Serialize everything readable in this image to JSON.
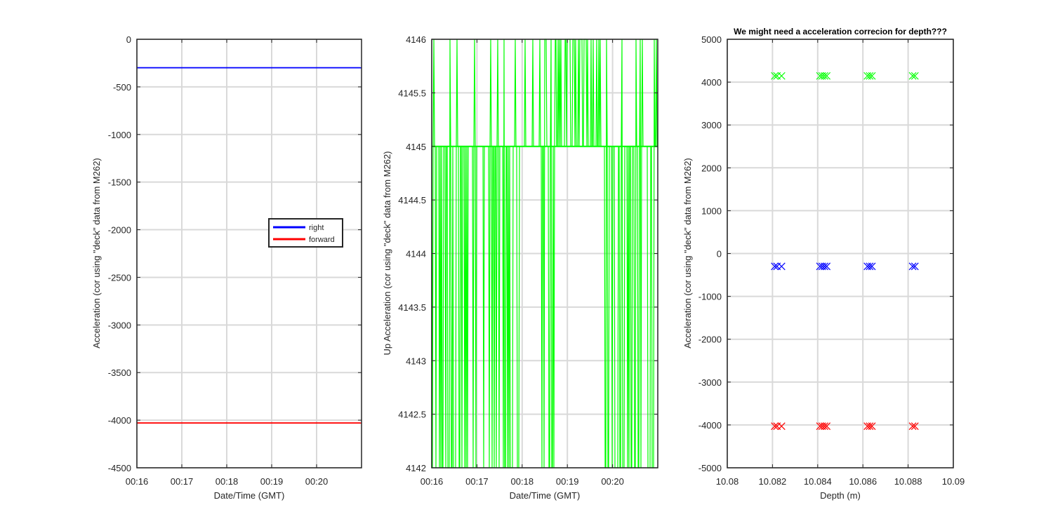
{
  "figure": {
    "background": "#ffffff"
  },
  "chart_data": [
    {
      "type": "line",
      "title": "",
      "xlabel": "Date/Time (GMT)",
      "ylabel": "Acceleration (cor using \"deck\" data from M262)",
      "x_ticks": [
        "00:16",
        "00:17",
        "00:18",
        "00:19",
        "00:20"
      ],
      "xlim": [
        0,
        5
      ],
      "ylim": [
        -4500,
        0
      ],
      "y_ticks": [
        0,
        -500,
        -1000,
        -1500,
        -2000,
        -2500,
        -3000,
        -3500,
        -4000,
        -4500
      ],
      "grid": true,
      "legend": {
        "placement": "center-right",
        "entries": [
          "right",
          "forward"
        ]
      },
      "series": [
        {
          "name": "right",
          "color": "#0000ff",
          "x": [
            0,
            5
          ],
          "values": [
            -300,
            -300
          ]
        },
        {
          "name": "forward",
          "color": "#ff0000",
          "x": [
            0,
            5
          ],
          "values": [
            -4030,
            -4030
          ]
        }
      ]
    },
    {
      "type": "line",
      "title": "",
      "xlabel": "Date/Time (GMT)",
      "ylabel": "Up Acceleration (cor using \"deck\" data from M262)",
      "x_ticks": [
        "00:16",
        "00:17",
        "00:18",
        "00:19",
        "00:20"
      ],
      "xlim": [
        0,
        5
      ],
      "ylim": [
        4142,
        4146
      ],
      "y_ticks": [
        4142,
        4142.5,
        4143,
        4143.5,
        4144,
        4144.5,
        4145,
        4145.5,
        4146
      ],
      "grid": true,
      "series": [
        {
          "color": "#00ff00",
          "levels": [
            4142,
            4145,
            4146
          ]
        }
      ]
    },
    {
      "type": "scatter",
      "title": "We might need a acceleration correcion for depth???",
      "xlabel": "Depth (m)",
      "ylabel": "Acceleration (cor using \"deck\" data from M262)",
      "xlim": [
        10.08,
        10.09
      ],
      "ylim": [
        -5000,
        5000
      ],
      "x_ticks": [
        10.08,
        10.082,
        10.084,
        10.086,
        10.088,
        10.09
      ],
      "y_ticks": [
        5000,
        4000,
        3000,
        2000,
        1000,
        0,
        -1000,
        -2000,
        -3000,
        -4000,
        -5000
      ],
      "grid": true,
      "marker": "x",
      "series": [
        {
          "color": "#00ff00",
          "x": [
            10.0821,
            10.0822,
            10.0824,
            10.0841,
            10.0842,
            10.0843,
            10.0844,
            10.0862,
            10.0863,
            10.0864,
            10.0882,
            10.0883
          ],
          "values": [
            4145,
            4145,
            4145,
            4145,
            4145,
            4145,
            4145,
            4145,
            4145,
            4145,
            4145,
            4145
          ]
        },
        {
          "color": "#0000ff",
          "x": [
            10.0821,
            10.0822,
            10.0824,
            10.0841,
            10.0842,
            10.0843,
            10.0844,
            10.0862,
            10.0863,
            10.0864,
            10.0882,
            10.0883
          ],
          "values": [
            -300,
            -300,
            -300,
            -300,
            -300,
            -300,
            -300,
            -300,
            -300,
            -300,
            -300,
            -300
          ]
        },
        {
          "color": "#ff0000",
          "x": [
            10.0821,
            10.0822,
            10.0824,
            10.0841,
            10.0842,
            10.0843,
            10.0844,
            10.0862,
            10.0863,
            10.0864,
            10.0882,
            10.0883
          ],
          "values": [
            -4030,
            -4030,
            -4030,
            -4030,
            -4030,
            -4030,
            -4030,
            -4030,
            -4030,
            -4030,
            -4030,
            -4030
          ]
        }
      ]
    }
  ]
}
